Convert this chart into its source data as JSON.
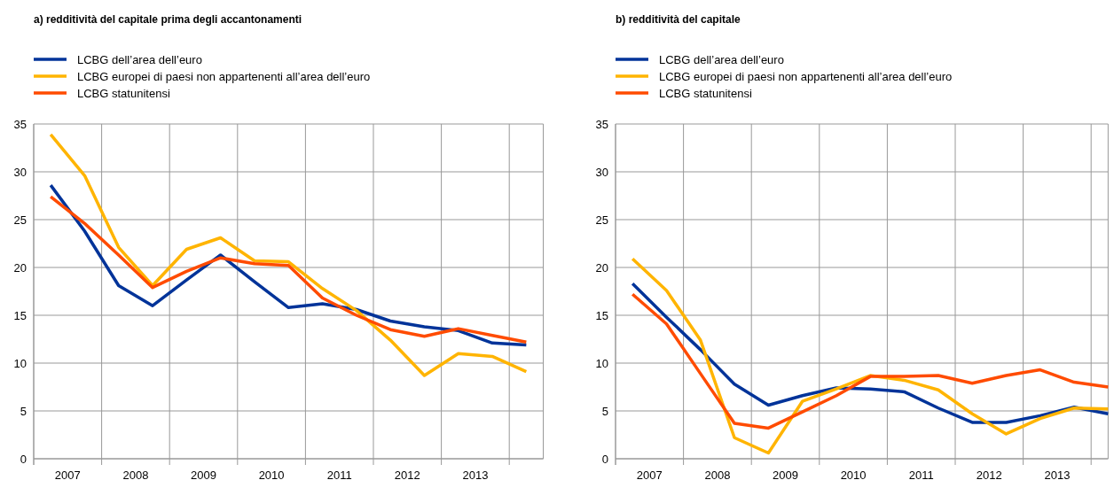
{
  "chart_data": [
    {
      "type": "line",
      "title": "a) redditività del capitale prima degli accantonamenti",
      "legend": "top left",
      "grid": true,
      "line_style": "solid",
      "marker": "none",
      "x": [
        2007.25,
        2007.75,
        2008.25,
        2008.75,
        2009.25,
        2009.75,
        2010.25,
        2010.75,
        2011.25,
        2011.75,
        2012.25,
        2012.75,
        2013.25,
        2013.75,
        2014.25
      ],
      "xlim": [
        2007,
        2014.5
      ],
      "xticks": [
        {
          "value": 2007,
          "label": null
        },
        {
          "value": 2007.5,
          "label": "2007"
        },
        {
          "value": 2008,
          "label": null
        },
        {
          "value": 2008.5,
          "label": "2008"
        },
        {
          "value": 2009,
          "label": null
        },
        {
          "value": 2009.5,
          "label": "2009"
        },
        {
          "value": 2010,
          "label": null
        },
        {
          "value": 2010.5,
          "label": "2010"
        },
        {
          "value": 2011,
          "label": null
        },
        {
          "value": 2011.5,
          "label": "2011"
        },
        {
          "value": 2012,
          "label": null
        },
        {
          "value": 2012.5,
          "label": "2012"
        },
        {
          "value": 2013,
          "label": null
        },
        {
          "value": 2013.5,
          "label": "2013"
        },
        {
          "value": 2014,
          "label": null
        }
      ],
      "ylim": [
        0,
        35
      ],
      "yticks": [
        0,
        5,
        10,
        15,
        20,
        25,
        30,
        35
      ],
      "series": [
        {
          "name": "LCBG dell’area dell’euro",
          "color": "#003399",
          "values": [
            28.6,
            23.8,
            18.1,
            16.0,
            18.7,
            21.3,
            18.5,
            15.8,
            16.2,
            15.6,
            14.4,
            13.8,
            13.4,
            12.1,
            11.9
          ]
        },
        {
          "name": "LCBG europei di paesi non appartenenti all’area dell’euro",
          "color": "#ffb400",
          "values": [
            33.9,
            29.6,
            22.1,
            18.1,
            21.9,
            23.1,
            20.7,
            20.6,
            17.8,
            15.5,
            12.4,
            8.7,
            11.0,
            10.7,
            9.1
          ]
        },
        {
          "name": "LCBG statunitensi",
          "color": "#ff4b00",
          "values": [
            27.4,
            24.6,
            21.3,
            17.9,
            19.6,
            21.0,
            20.4,
            20.2,
            16.8,
            15.0,
            13.5,
            12.8,
            13.6,
            12.9,
            12.2
          ]
        }
      ]
    },
    {
      "type": "line",
      "title": "b) redditività del capitale",
      "legend": "top left",
      "grid": true,
      "line_style": "solid",
      "marker": "none",
      "x": [
        2007.25,
        2007.75,
        2008.25,
        2008.75,
        2009.25,
        2009.75,
        2010.25,
        2010.75,
        2011.25,
        2011.75,
        2012.25,
        2012.75,
        2013.25,
        2013.75,
        2014.25
      ],
      "xlim": [
        2007,
        2014.25
      ],
      "xticks": [
        {
          "value": 2007,
          "label": null
        },
        {
          "value": 2007.5,
          "label": "2007"
        },
        {
          "value": 2008,
          "label": null
        },
        {
          "value": 2008.5,
          "label": "2008"
        },
        {
          "value": 2009,
          "label": null
        },
        {
          "value": 2009.5,
          "label": "2009"
        },
        {
          "value": 2010,
          "label": null
        },
        {
          "value": 2010.5,
          "label": "2010"
        },
        {
          "value": 2011,
          "label": null
        },
        {
          "value": 2011.5,
          "label": "2011"
        },
        {
          "value": 2012,
          "label": null
        },
        {
          "value": 2012.5,
          "label": "2012"
        },
        {
          "value": 2013,
          "label": null
        },
        {
          "value": 2013.5,
          "label": "2013"
        },
        {
          "value": 2014,
          "label": null
        }
      ],
      "ylim": [
        0,
        35
      ],
      "yticks": [
        0,
        5,
        10,
        15,
        20,
        25,
        30,
        35
      ],
      "series": [
        {
          "name": "LCBG dell’area dell’euro",
          "color": "#003399",
          "values": [
            18.3,
            14.8,
            11.4,
            7.8,
            5.6,
            6.6,
            7.4,
            7.3,
            7.0,
            5.3,
            3.8,
            3.8,
            4.5,
            5.4,
            4.7
          ]
        },
        {
          "name": "LCBG europei di paesi non appartenenti all’area dell’euro",
          "color": "#ffb400",
          "values": [
            20.9,
            17.6,
            12.4,
            2.2,
            0.6,
            6.0,
            7.3,
            8.7,
            8.2,
            7.2,
            4.7,
            2.6,
            4.2,
            5.3,
            5.2
          ]
        },
        {
          "name": "LCBG statunitensi",
          "color": "#ff4b00",
          "values": [
            17.2,
            14.1,
            8.9,
            3.7,
            3.2,
            4.9,
            6.6,
            8.6,
            8.6,
            8.7,
            7.9,
            8.7,
            9.3,
            8.0,
            7.5
          ]
        }
      ]
    }
  ]
}
